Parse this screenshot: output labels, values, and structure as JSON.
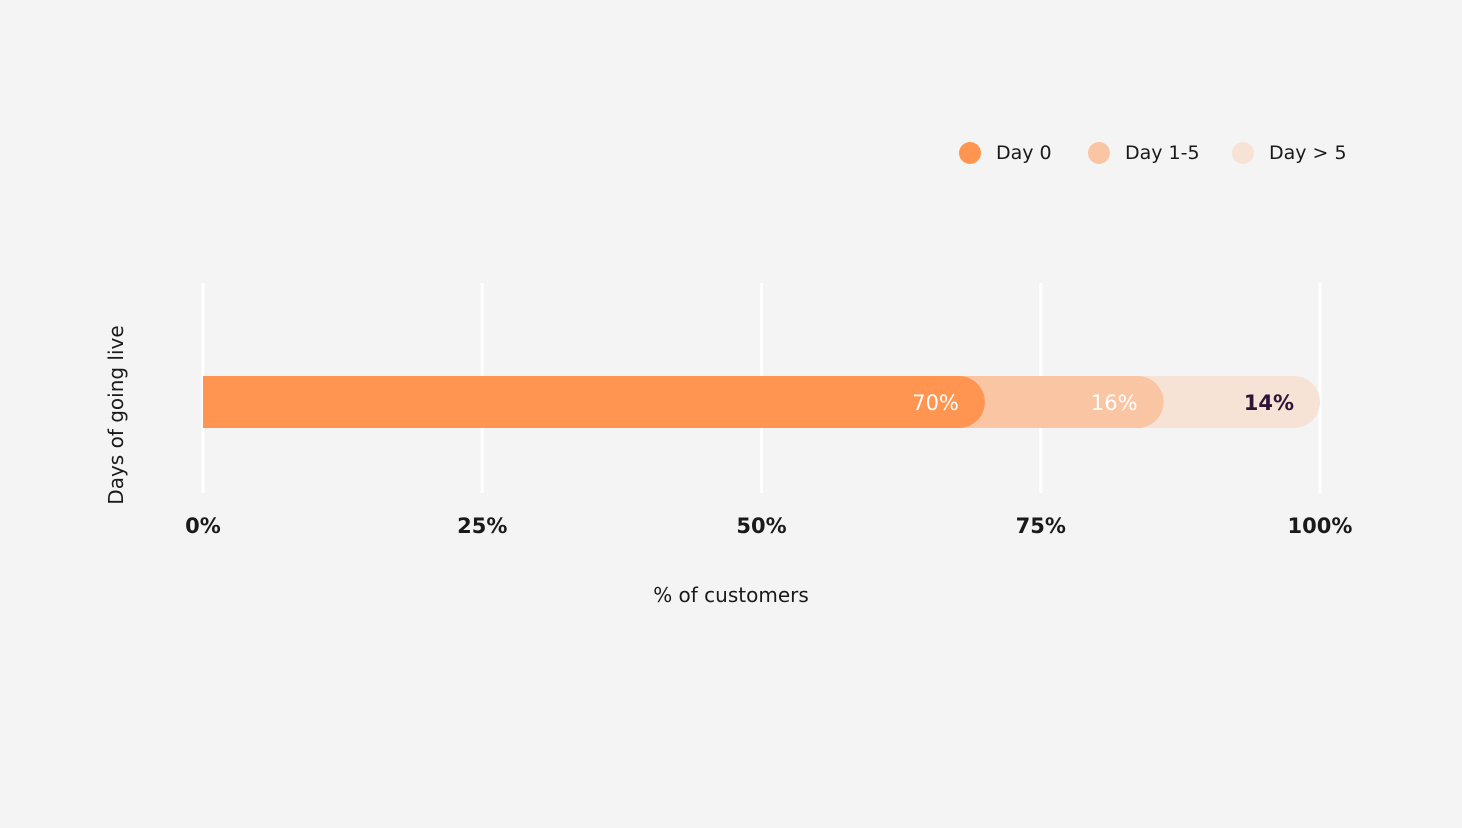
{
  "chart_data": {
    "type": "bar",
    "orientation": "horizontal",
    "stacked": true,
    "xlabel": "% of customers",
    "ylabel": "Days of going live",
    "xlim": [
      0,
      100
    ],
    "x_ticks": [
      "0%",
      "25%",
      "50%",
      "75%",
      "100%"
    ],
    "x_tick_values": [
      0,
      25,
      50,
      75,
      100
    ],
    "grid": true,
    "legend_position": "top-right",
    "series": [
      {
        "name": "Day 0",
        "values": [
          70
        ],
        "data_label": "70%",
        "color": "#ff9550",
        "label_color": "#ffffff"
      },
      {
        "name": "Day 1-5",
        "values": [
          16
        ],
        "data_label": "16%",
        "color": "#f9c5a3",
        "label_color": "#ffffff"
      },
      {
        "name": "Day > 5",
        "values": [
          14
        ],
        "data_label": "14%",
        "color": "#f7e2d6",
        "label_color": "#2e1538"
      }
    ]
  },
  "colors": {
    "background": "#f4f4f4",
    "gridline": "#ffffff",
    "text": "#1a1a1a"
  }
}
